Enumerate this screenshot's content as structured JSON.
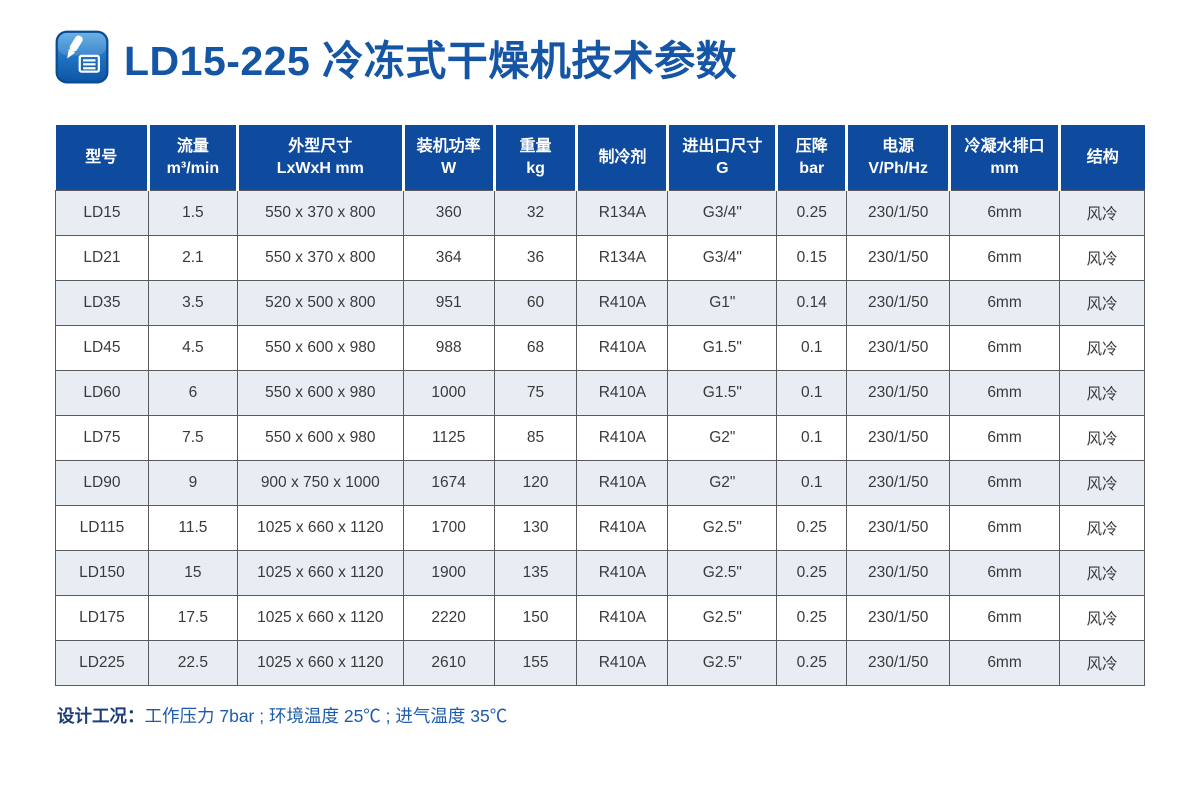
{
  "page": {
    "title": "LD15-225 冷冻式干燥机技术参数"
  },
  "icons": {
    "title_icon": "edit-document-icon"
  },
  "colors": {
    "page_bg": "#ffffff",
    "header_bg": "#0e4a9d",
    "header_text": "#ffffff",
    "row_bg": "#ffffff",
    "row_alt_bg": "#e8edf4",
    "grid_border": "#5a5b5e",
    "cell_text": "#3a3a3a",
    "title_color": "#1455a5",
    "note_label_color": "#1c3e78",
    "note_text_color": "#1e5cab",
    "icon_blue_light": "#4ea0dd",
    "icon_blue_dark": "#0d55a4"
  },
  "table": {
    "columns": [
      {
        "label": "型号",
        "sub": ""
      },
      {
        "label": "流量",
        "sub": "m³/min"
      },
      {
        "label": "外型尺寸",
        "sub": "LxWxH mm"
      },
      {
        "label": "装机功率",
        "sub": "W"
      },
      {
        "label": "重量",
        "sub": "kg"
      },
      {
        "label": "制冷剂",
        "sub": ""
      },
      {
        "label": "进出口尺寸",
        "sub": "G"
      },
      {
        "label": "压降",
        "sub": "bar"
      },
      {
        "label": "电源",
        "sub": "V/Ph/Hz"
      },
      {
        "label": "冷凝水排口",
        "sub": "mm"
      },
      {
        "label": "结构",
        "sub": ""
      }
    ],
    "rows": [
      [
        "LD15",
        "1.5",
        "550 x 370 x 800",
        "360",
        "32",
        "R134A",
        "G3/4\"",
        "0.25",
        "230/1/50",
        "6mm",
        "风冷"
      ],
      [
        "LD21",
        "2.1",
        "550 x 370 x 800",
        "364",
        "36",
        "R134A",
        "G3/4\"",
        "0.15",
        "230/1/50",
        "6mm",
        "风冷"
      ],
      [
        "LD35",
        "3.5",
        "520 x 500 x 800",
        "951",
        "60",
        "R410A",
        "G1\"",
        "0.14",
        "230/1/50",
        "6mm",
        "风冷"
      ],
      [
        "LD45",
        "4.5",
        "550 x 600 x 980",
        "988",
        "68",
        "R410A",
        "G1.5\"",
        "0.1",
        "230/1/50",
        "6mm",
        "风冷"
      ],
      [
        "LD60",
        "6",
        "550 x 600 x 980",
        "1000",
        "75",
        "R410A",
        "G1.5\"",
        "0.1",
        "230/1/50",
        "6mm",
        "风冷"
      ],
      [
        "LD75",
        "7.5",
        "550 x 600 x 980",
        "1125",
        "85",
        "R410A",
        "G2\"",
        "0.1",
        "230/1/50",
        "6mm",
        "风冷"
      ],
      [
        "LD90",
        "9",
        "900 x 750 x 1000",
        "1674",
        "120",
        "R410A",
        "G2\"",
        "0.1",
        "230/1/50",
        "6mm",
        "风冷"
      ],
      [
        "LD115",
        "11.5",
        "1025 x 660 x 1120",
        "1700",
        "130",
        "R410A",
        "G2.5\"",
        "0.25",
        "230/1/50",
        "6mm",
        "风冷"
      ],
      [
        "LD150",
        "15",
        "1025 x 660 x 1120",
        "1900",
        "135",
        "R410A",
        "G2.5\"",
        "0.25",
        "230/1/50",
        "6mm",
        "风冷"
      ],
      [
        "LD175",
        "17.5",
        "1025 x 660 x 1120",
        "2220",
        "150",
        "R410A",
        "G2.5\"",
        "0.25",
        "230/1/50",
        "6mm",
        "风冷"
      ],
      [
        "LD225",
        "22.5",
        "1025 x 660 x 1120",
        "2610",
        "155",
        "R410A",
        "G2.5\"",
        "0.25",
        "230/1/50",
        "6mm",
        "风冷"
      ]
    ]
  },
  "note": {
    "label": "设计工况：",
    "text": "工作压力 7bar ; 环境温度 25℃ ; 进气温度 35℃"
  }
}
